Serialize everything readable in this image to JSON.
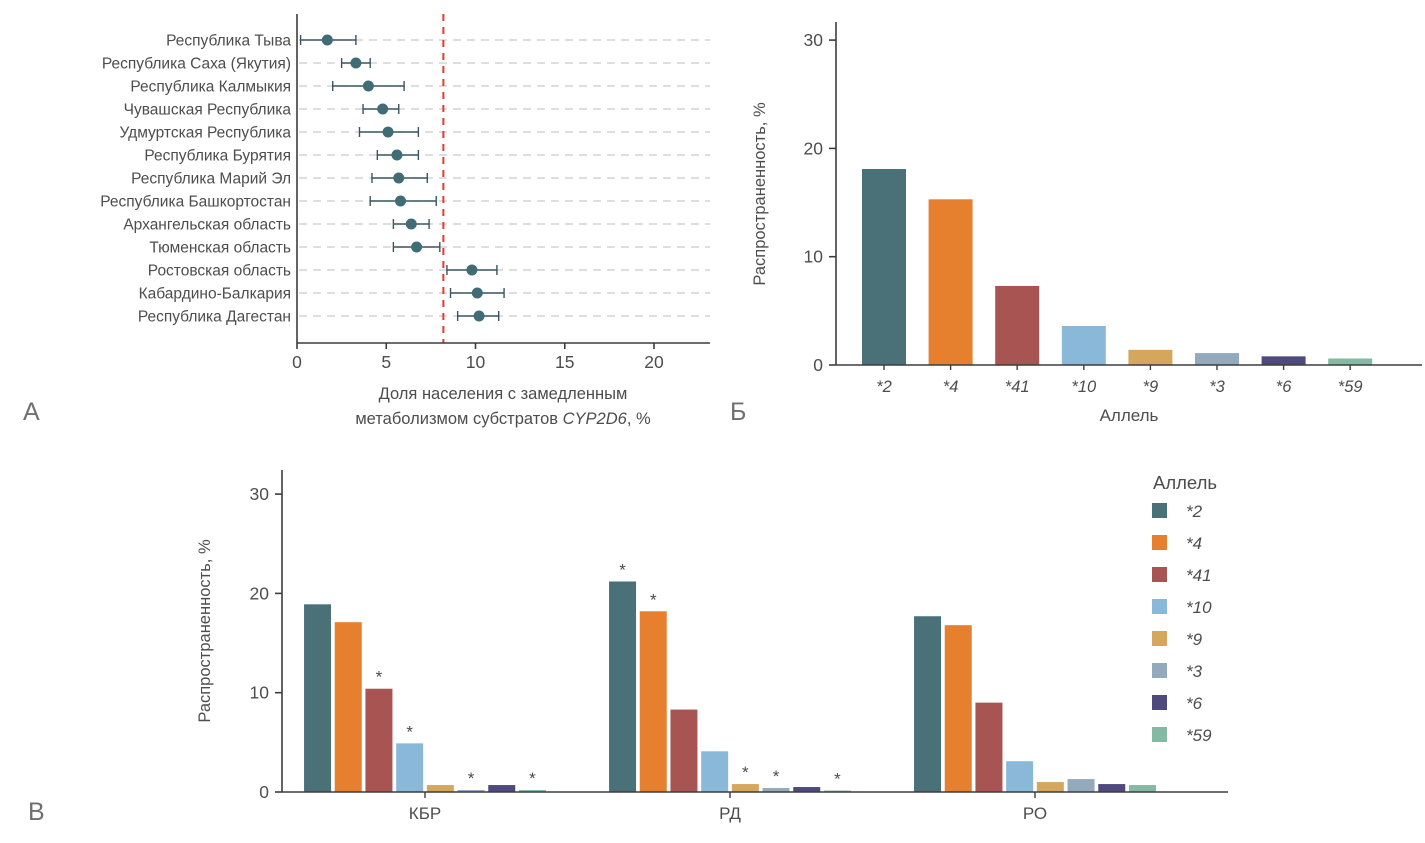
{
  "figure": {
    "panel_a_label": "А",
    "panel_b_label": "Б",
    "panel_v_label": "В"
  },
  "colors": {
    "dot": "#3F6C75",
    "error_bar": "#3A555E",
    "reference_line": "#E23B30",
    "axis": "#3D3D3D",
    "grid": "#CBCBCB",
    "text": "#4D4D4D",
    "alleles": {
      "*2": "#4A7078",
      "*4": "#E6802F",
      "*41": "#A75452",
      "*10": "#8AB8D8",
      "*9": "#D5A75C",
      "*3": "#93A9BC",
      "*6": "#4F4A7E",
      "*59": "#84BAA4"
    }
  },
  "chart_data": [
    {
      "id": "A",
      "type": "scatter",
      "description": "Forest-style dot plot with 95% CI error bars by region",
      "xlabel_line1": "Доля населения с замедленным",
      "xlabel_line2_prefix": "метаболизмом субстратов ",
      "xlabel_line2_italic": "CYP2D6",
      "xlabel_line2_suffix": ", %",
      "xlim": [
        0,
        22.5
      ],
      "xticks": [
        0,
        5,
        10,
        15,
        20
      ],
      "reference_line_x": 8.2,
      "grid": "dashed-horizontal",
      "points": [
        {
          "region": "Республика Тыва",
          "value": 1.7,
          "ci_low": 0.2,
          "ci_high": 3.3
        },
        {
          "region": "Республика Саха (Якутия)",
          "value": 3.3,
          "ci_low": 2.5,
          "ci_high": 4.1
        },
        {
          "region": "Республика Калмыкия",
          "value": 4.0,
          "ci_low": 2.0,
          "ci_high": 6.0
        },
        {
          "region": "Чувашская Республика",
          "value": 4.8,
          "ci_low": 3.7,
          "ci_high": 5.7
        },
        {
          "region": "Удмуртская Республика",
          "value": 5.1,
          "ci_low": 3.5,
          "ci_high": 6.8
        },
        {
          "region": "Республика Бурятия",
          "value": 5.6,
          "ci_low": 4.5,
          "ci_high": 6.8
        },
        {
          "region": "Республика Марий Эл",
          "value": 5.7,
          "ci_low": 4.2,
          "ci_high": 7.3
        },
        {
          "region": "Республика Башкортостан",
          "value": 5.8,
          "ci_low": 4.1,
          "ci_high": 7.8
        },
        {
          "region": "Архангельская область",
          "value": 6.4,
          "ci_low": 5.4,
          "ci_high": 7.4
        },
        {
          "region": "Тюменская область",
          "value": 6.7,
          "ci_low": 5.4,
          "ci_high": 8.0
        },
        {
          "region": "Ростовская область",
          "value": 9.8,
          "ci_low": 8.4,
          "ci_high": 11.2
        },
        {
          "region": "Кабардино-Балкария",
          "value": 10.1,
          "ci_low": 8.6,
          "ci_high": 11.6
        },
        {
          "region": "Республика Дагестан",
          "value": 10.2,
          "ci_low": 9.0,
          "ci_high": 11.3
        }
      ]
    },
    {
      "id": "Б",
      "type": "bar",
      "ylabel": "Распространенность, %",
      "xlabel": "Аллель",
      "ylim": [
        0,
        32
      ],
      "yticks": [
        0,
        10,
        20,
        30
      ],
      "categories": [
        "*2",
        "*4",
        "*41",
        "*10",
        "*9",
        "*3",
        "*6",
        "*59"
      ],
      "values": [
        18.1,
        15.3,
        7.3,
        3.6,
        1.4,
        1.1,
        0.8,
        0.6
      ]
    },
    {
      "id": "В",
      "type": "bar",
      "grouped": true,
      "ylabel": "Распространенность, %",
      "ylim": [
        0,
        32
      ],
      "yticks": [
        0,
        10,
        20,
        30
      ],
      "legend_title": "Аллель",
      "legend_position": "right",
      "significance_marker": "*",
      "categories": [
        "КБР",
        "РД",
        "РО"
      ],
      "alleles": [
        "*2",
        "*4",
        "*41",
        "*10",
        "*9",
        "*3",
        "*6",
        "*59"
      ],
      "series": [
        {
          "name": "КБР",
          "values": [
            18.9,
            17.1,
            10.4,
            4.9,
            0.7,
            0.2,
            0.7,
            0.2
          ],
          "significant": [
            false,
            false,
            true,
            true,
            false,
            true,
            false,
            true
          ]
        },
        {
          "name": "РД",
          "values": [
            21.2,
            18.2,
            8.3,
            4.1,
            0.8,
            0.4,
            0.5,
            0.15
          ],
          "significant": [
            true,
            true,
            false,
            false,
            true,
            true,
            false,
            true
          ]
        },
        {
          "name": "РО",
          "values": [
            17.7,
            16.8,
            9.0,
            3.1,
            1.0,
            1.3,
            0.8,
            0.7
          ],
          "significant": [
            false,
            false,
            false,
            false,
            false,
            false,
            false,
            false
          ]
        }
      ]
    }
  ]
}
